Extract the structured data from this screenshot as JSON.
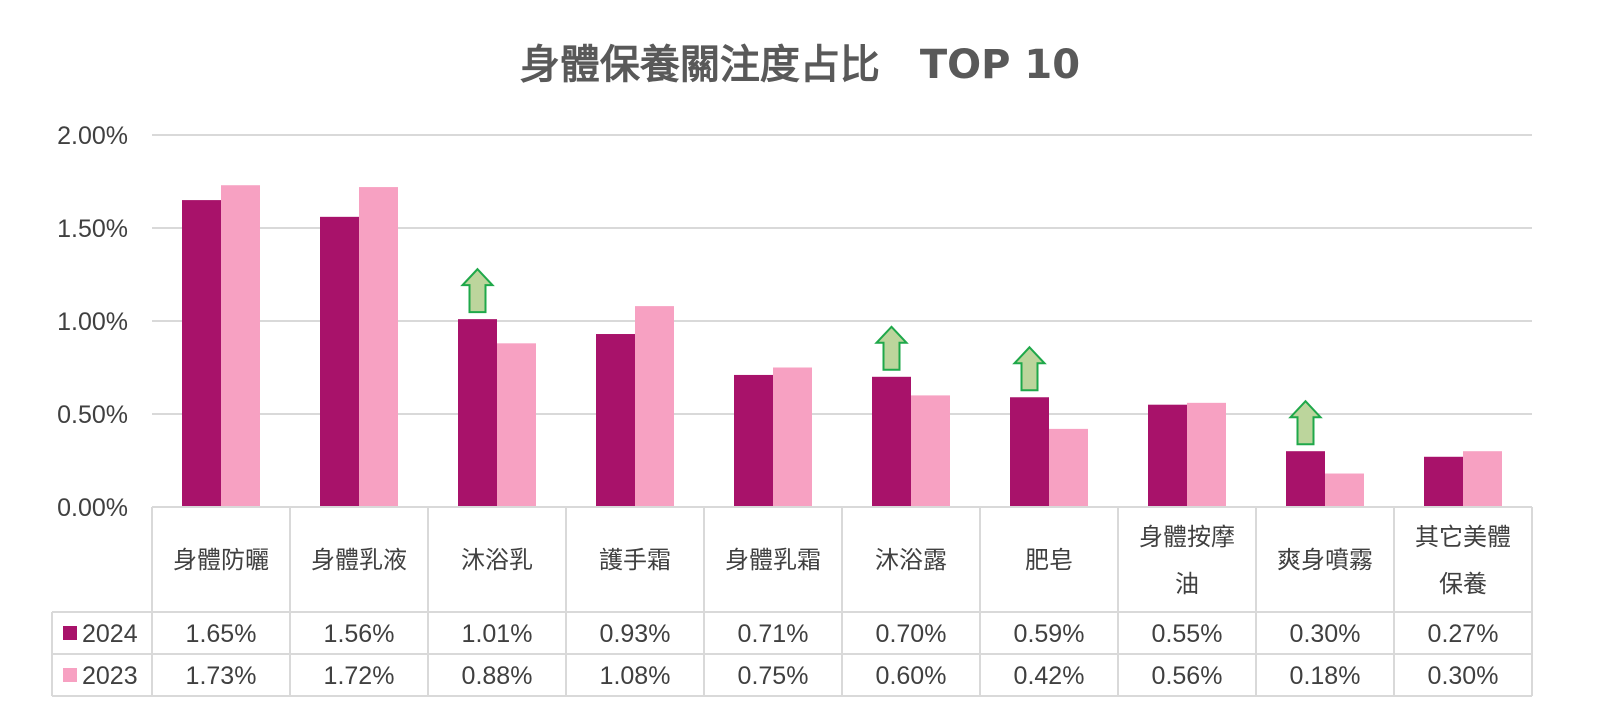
{
  "chart_data": {
    "type": "bar",
    "title": "身體保養關注度占比　TOP 10",
    "categories": [
      [
        "身體防曬"
      ],
      [
        "身體乳液"
      ],
      [
        "沐浴乳"
      ],
      [
        "護手霜"
      ],
      [
        "身體乳霜"
      ],
      [
        "沐浴露"
      ],
      [
        "肥皂"
      ],
      [
        "身體按摩",
        "油"
      ],
      [
        "爽身噴霧"
      ],
      [
        "其它美體",
        "保養"
      ]
    ],
    "series": [
      {
        "name": "2024",
        "color": "#a8126a",
        "values": [
          1.65,
          1.56,
          1.01,
          0.93,
          0.71,
          0.7,
          0.59,
          0.55,
          0.3,
          0.27
        ],
        "labels": [
          "1.65%",
          "1.56%",
          "1.01%",
          "0.93%",
          "0.71%",
          "0.70%",
          "0.59%",
          "0.55%",
          "0.30%",
          "0.27%"
        ]
      },
      {
        "name": "2023",
        "color": "#f7a1c2",
        "values": [
          1.73,
          1.72,
          0.88,
          1.08,
          0.75,
          0.6,
          0.42,
          0.56,
          0.18,
          0.3
        ],
        "labels": [
          "1.73%",
          "1.72%",
          "0.88%",
          "1.08%",
          "0.75%",
          "0.60%",
          "0.42%",
          "0.56%",
          "0.18%",
          "0.30%"
        ]
      }
    ],
    "ylim": [
      0,
      2.0
    ],
    "yticks": [
      "0.00%",
      "0.50%",
      "1.00%",
      "1.50%",
      "2.00%"
    ],
    "grid": true,
    "legend": "data-table",
    "up_arrow_categories": [
      2,
      5,
      6,
      8
    ],
    "arrow_colors": {
      "fill": "#bcd59c",
      "stroke": "#1fa84a"
    },
    "gridline_color": "#d9d9d9"
  }
}
